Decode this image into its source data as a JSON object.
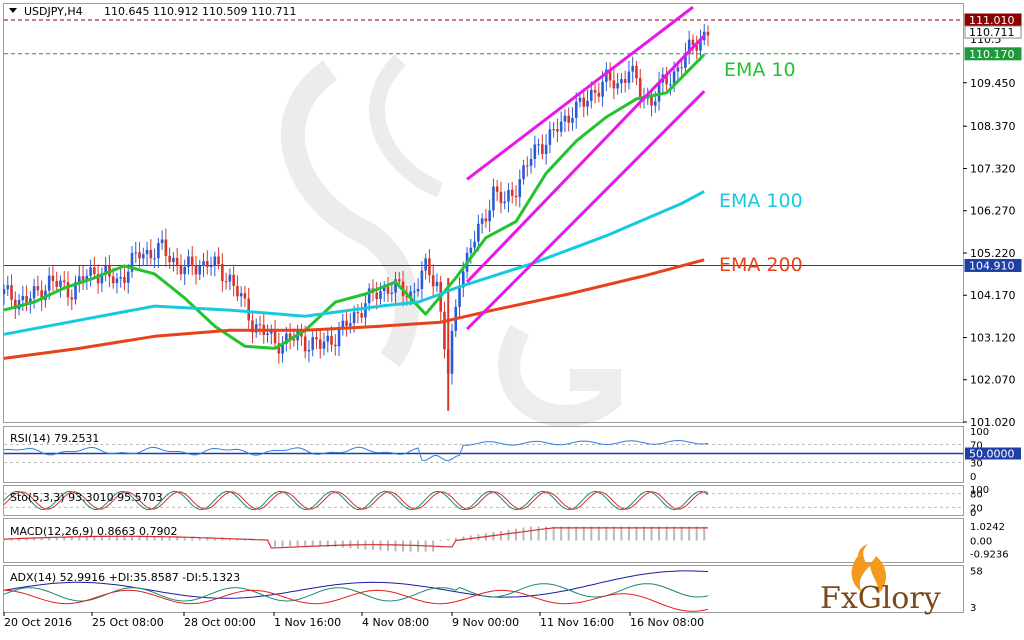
{
  "header": {
    "symbol": "USDJPY,H4",
    "ohlc": "110.645 110.912 110.509 110.711"
  },
  "price_axis": {
    "ticks": [
      "109.450",
      "108.370",
      "107.320",
      "106.270",
      "105.220",
      "104.170",
      "103.120",
      "102.070",
      "101.020"
    ],
    "badges": [
      {
        "label": "111.010",
        "color": "#8b0000",
        "text_color": "#ffffff"
      },
      {
        "label": "110.711",
        "color": "#ffffff",
        "text_color": "#000000"
      },
      {
        "label": "110.170",
        "color": "#1d9b3a",
        "text_color": "#ffffff"
      },
      {
        "label": "104.910",
        "color": "#1f3fa8",
        "text_color": "#ffffff"
      }
    ],
    "partial_label": "110.5"
  },
  "labels": {
    "ema10": {
      "text": "EMA 10",
      "color": "#22c32e"
    },
    "ema100": {
      "text": "EMA 100",
      "color": "#16c9e0"
    },
    "ema200": {
      "text": "EMA 200",
      "color": "#e8421a"
    }
  },
  "time_axis": [
    "20 Oct 2016",
    "25 Oct 08:00",
    "28 Oct 00:00",
    "1 Nov 16:00",
    "4 Nov 08:00",
    "9 Nov 00:00",
    "11 Nov 16:00",
    "16 Nov 08:00"
  ],
  "indicators": {
    "rsi": {
      "label": "RSI(14) 79.2531",
      "ticks": [
        "100",
        "70",
        "30",
        "0"
      ],
      "level_badge": "50.0000"
    },
    "stoch": {
      "label": "Sto(5,3,3) 93.3010 95.5703",
      "ticks": [
        "100",
        "80",
        "20",
        "0"
      ]
    },
    "macd": {
      "label": "MACD(12,26,9) 0.8663 0.7902",
      "ticks": [
        "1.0242",
        "0.00",
        "-0.9236"
      ]
    },
    "adx": {
      "label": "ADX(14) 52.9916 +DI:35.8587 -DI:5.1323",
      "ticks": [
        "58",
        "3"
      ]
    }
  },
  "watermark": {
    "brand": "FxGlory"
  },
  "colors": {
    "bull": "#2a5bd7",
    "bear": "#d8352a",
    "channel": "#e619e6",
    "grid": "#b0b0b0",
    "rsi_line": "#2e7fe0",
    "macd_signal": "#d32f2f",
    "macd_hist": "#b8b8b8",
    "adx_main": "#1a1aa6",
    "adx_plus": "#1b8a6b",
    "adx_minus": "#e02020"
  },
  "chart_data": {
    "type": "line",
    "title": "USDJPY,H4",
    "x_ticks": [
      "20 Oct 2016",
      "25 Oct 08:00",
      "28 Oct 00:00",
      "1 Nov 16:00",
      "4 Nov 08:00",
      "9 Nov 00:00",
      "11 Nov 16:00",
      "16 Nov 08:00"
    ],
    "ylim": [
      101.02,
      111.01
    ],
    "series": [
      {
        "name": "EMA 10",
        "x": [
          0,
          8,
          16,
          24,
          32,
          40,
          48,
          56,
          64,
          72,
          80,
          88,
          96,
          104,
          112,
          120,
          128,
          136,
          144,
          152,
          160,
          168,
          176,
          186
        ],
        "values": [
          103.8,
          104.0,
          104.35,
          104.6,
          104.9,
          104.7,
          104.1,
          103.4,
          102.9,
          102.85,
          103.3,
          104.0,
          104.2,
          104.5,
          103.7,
          104.6,
          105.6,
          106.0,
          107.2,
          108.0,
          108.6,
          109.05,
          109.2,
          110.15
        ]
      },
      {
        "name": "EMA 100",
        "x": [
          0,
          20,
          40,
          60,
          80,
          100,
          110,
          116,
          120,
          130,
          140,
          150,
          160,
          170,
          180,
          186
        ],
        "values": [
          103.2,
          103.55,
          103.9,
          103.8,
          103.65,
          103.9,
          104.0,
          104.2,
          104.35,
          104.65,
          104.95,
          105.3,
          105.65,
          106.05,
          106.45,
          106.75
        ]
      },
      {
        "name": "EMA 200",
        "x": [
          0,
          20,
          40,
          60,
          80,
          100,
          116,
          130,
          150,
          170,
          186
        ],
        "values": [
          102.6,
          102.85,
          103.15,
          103.3,
          103.3,
          103.4,
          103.5,
          103.8,
          104.2,
          104.65,
          105.05
        ]
      }
    ],
    "channel": {
      "upper": [
        [
          123,
          107.05
        ],
        [
          183,
          111.33
        ]
      ],
      "middle": [
        [
          123,
          104.5
        ],
        [
          186,
          110.62
        ]
      ],
      "lower": [
        [
          123,
          103.33
        ],
        [
          186,
          109.24
        ]
      ]
    },
    "horizontal_lines": [
      {
        "label": "111.010",
        "y": 111.01,
        "style": "dashed",
        "color": "#8b0000"
      },
      {
        "label": "110.170",
        "y": 110.17,
        "style": "dashed",
        "color": "#1d9b3a"
      },
      {
        "label": "104.910",
        "y": 104.91,
        "style": "solid",
        "color": "#1f3fa8"
      }
    ],
    "candles_close_path": {
      "x": [
        0,
        6,
        12,
        18,
        24,
        30,
        36,
        42,
        48,
        54,
        60,
        66,
        72,
        78,
        84,
        90,
        96,
        102,
        108,
        112,
        115,
        118,
        121,
        124,
        127,
        130,
        133,
        136,
        139,
        142,
        145,
        148,
        151,
        154,
        157,
        160,
        163,
        166,
        169,
        172,
        175,
        178,
        181,
        184,
        187
      ],
      "values": [
        104.2,
        104.0,
        104.5,
        104.3,
        104.8,
        104.5,
        105.2,
        105.3,
        104.8,
        105.0,
        104.6,
        103.5,
        103.0,
        103.1,
        102.9,
        103.3,
        104.0,
        104.4,
        104.2,
        104.8,
        104.5,
        102.2,
        104.6,
        105.4,
        105.9,
        106.8,
        106.4,
        106.9,
        107.4,
        107.9,
        108.1,
        108.4,
        108.8,
        108.9,
        109.3,
        109.5,
        109.4,
        109.8,
        109.2,
        109.0,
        109.4,
        109.7,
        110.1,
        110.5,
        110.7
      ]
    },
    "candles_x_range": [
      0,
      187
    ]
  }
}
